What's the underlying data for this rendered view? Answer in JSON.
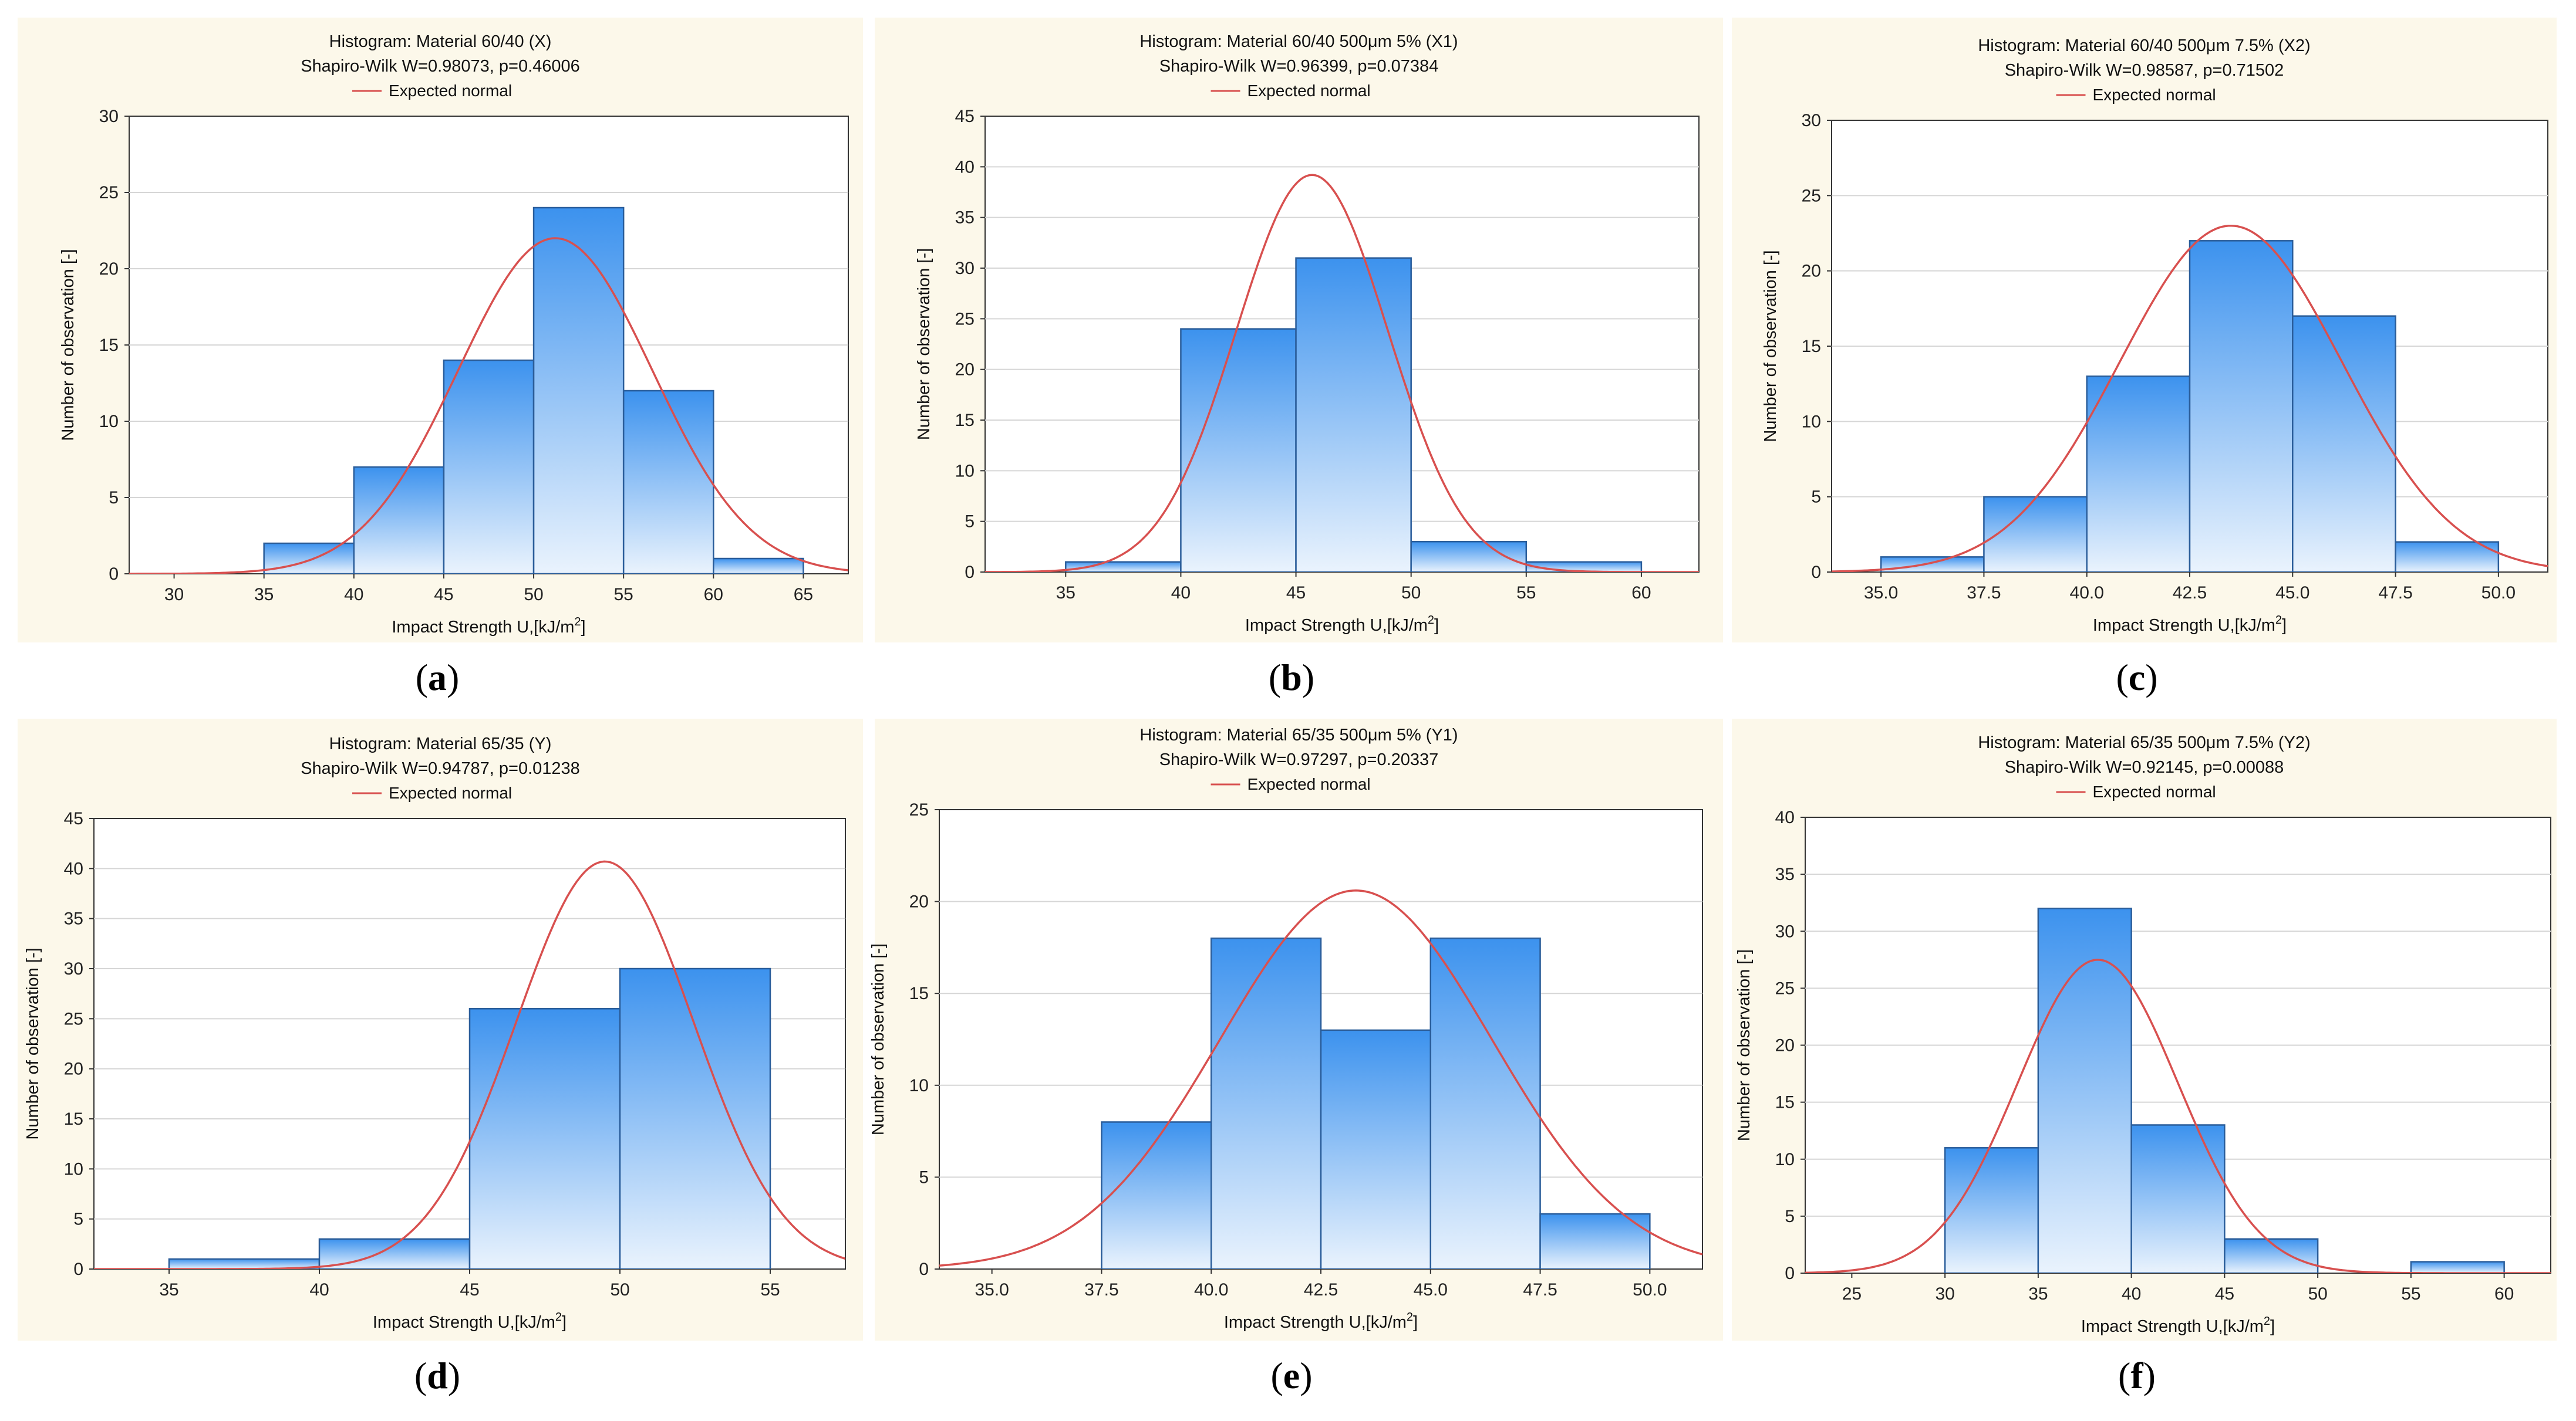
{
  "labels": {
    "expected_normal": "Expected normal",
    "xlabel": "Impact Strength U,[kJ/m",
    "xlabel_sup": "2",
    "xlabel_end": "]",
    "ylabel": "Number of observation [-]"
  },
  "colors": {
    "panel_bg": "#fcf8ea",
    "bar_top": "#3c92ee",
    "bar_bottom": "#eaf3fd",
    "bar_edge": "#2a5d9a",
    "curve": "#d8504f"
  },
  "chart_data": [
    {
      "type": "bar",
      "subfigure": "a",
      "title": "Histogram: Material 60/40 (X)",
      "subtitle": "Shapiro-Wilk W=0.98073, p=0.46006",
      "legend": "Expected normal",
      "xlabel": "Impact Strength U,[kJ/m2]",
      "ylabel": "Number of observation [-]",
      "xlim": [
        27.5,
        67.5
      ],
      "ylim": [
        0,
        30
      ],
      "xticks": [
        30,
        35,
        40,
        45,
        50,
        55,
        60,
        65
      ],
      "yticks": [
        0,
        5,
        10,
        15,
        20,
        25,
        30
      ],
      "tick_decimals": 0,
      "bins": [
        [
          35,
          40,
          2
        ],
        [
          40,
          45,
          7
        ],
        [
          45,
          50,
          14
        ],
        [
          50,
          55,
          24
        ],
        [
          55,
          60,
          12
        ],
        [
          60,
          65,
          1
        ]
      ],
      "normal_fit": {
        "mean": 51.2,
        "sd": 5.4,
        "peak": 22
      }
    },
    {
      "type": "bar",
      "subfigure": "b",
      "title": "Histogram: Material 60/40 500μm 5% (X1)",
      "subtitle": "Shapiro-Wilk W=0.96399, p=0.07384",
      "legend": "Expected normal",
      "xlabel": "Impact Strength U,[kJ/m2]",
      "ylabel": "Number of observation [-]",
      "xlim": [
        31.5,
        62.5
      ],
      "ylim": [
        0,
        45
      ],
      "xticks": [
        35,
        40,
        45,
        50,
        55,
        60
      ],
      "yticks": [
        0,
        5,
        10,
        15,
        20,
        25,
        30,
        35,
        40,
        45
      ],
      "tick_decimals": 0,
      "bins": [
        [
          35,
          40,
          1
        ],
        [
          40,
          45,
          24
        ],
        [
          45,
          50,
          31
        ],
        [
          50,
          55,
          3
        ],
        [
          55,
          60,
          1
        ]
      ],
      "normal_fit": {
        "mean": 45.7,
        "sd": 3.3,
        "peak": 39.2
      }
    },
    {
      "type": "bar",
      "subfigure": "c",
      "title": "Histogram: Material 60/40 500μm  7.5% (X2)",
      "subtitle": "Shapiro-Wilk W=0.98587, p=0.71502",
      "legend": "Expected normal",
      "xlabel": "Impact Strength U,[kJ/m2]",
      "ylabel": "Number of observation [-]",
      "xlim": [
        33.8,
        51.2
      ],
      "ylim": [
        0,
        30
      ],
      "xticks": [
        35.0,
        37.5,
        40.0,
        42.5,
        45.0,
        47.5,
        50.0
      ],
      "yticks": [
        0,
        5,
        10,
        15,
        20,
        25,
        30
      ],
      "tick_decimals": 1,
      "bins": [
        [
          35,
          37.5,
          1
        ],
        [
          37.5,
          40,
          5
        ],
        [
          40,
          42.5,
          13
        ],
        [
          42.5,
          45,
          22
        ],
        [
          45,
          47.5,
          17
        ],
        [
          47.5,
          50,
          2
        ]
      ],
      "normal_fit": {
        "mean": 43.5,
        "sd": 2.7,
        "peak": 23
      }
    },
    {
      "type": "bar",
      "subfigure": "d",
      "title": "Histogram: Material 65/35 (Y)",
      "subtitle": "Shapiro-Wilk W=0.94787, p=0.01238",
      "legend": "Expected normal",
      "xlabel": "Impact Strength U,[kJ/m2]",
      "ylabel": "Number of observation [-]",
      "xlim": [
        32.5,
        57.5
      ],
      "ylim": [
        0,
        45
      ],
      "xticks": [
        35,
        40,
        45,
        50,
        55
      ],
      "yticks": [
        0,
        5,
        10,
        15,
        20,
        25,
        30,
        35,
        40,
        45
      ],
      "tick_decimals": 0,
      "bins": [
        [
          35,
          40,
          1
        ],
        [
          40,
          45,
          3
        ],
        [
          45,
          50,
          26
        ],
        [
          50,
          55,
          30
        ]
      ],
      "normal_fit": {
        "mean": 49.5,
        "sd": 2.95,
        "peak": 40.7
      }
    },
    {
      "type": "bar",
      "subfigure": "e",
      "title": "Histogram: Material 65/35 500μm 5% (Y1)",
      "subtitle": "Shapiro-Wilk W=0.97297, p=0.20337",
      "legend": "Expected normal",
      "xlabel": "Impact Strength U,[kJ/m2]",
      "ylabel": "Number of observation [-]",
      "xlim": [
        33.8,
        51.2
      ],
      "ylim": [
        0,
        25
      ],
      "xticks": [
        35.0,
        37.5,
        40.0,
        42.5,
        45.0,
        47.5,
        50.0
      ],
      "yticks": [
        0,
        5,
        10,
        15,
        20,
        25
      ],
      "tick_decimals": 1,
      "bins": [
        [
          37.5,
          40,
          8
        ],
        [
          40,
          42.5,
          18
        ],
        [
          42.5,
          45,
          13
        ],
        [
          45,
          47.5,
          18
        ],
        [
          47.5,
          50,
          3
        ]
      ],
      "normal_fit": {
        "mean": 43.3,
        "sd": 3.1,
        "peak": 20.6
      }
    },
    {
      "type": "bar",
      "subfigure": "f",
      "title": "Histogram: Material 65/35 500μm 7.5% (Y2)",
      "subtitle": "Shapiro-Wilk W=0.92145, p=0.00088",
      "legend": "Expected normal",
      "xlabel": "Impact Strength U,[kJ/m2]",
      "ylabel": "Number of observation [-]",
      "xlim": [
        22.5,
        62.5
      ],
      "ylim": [
        0,
        40
      ],
      "xticks": [
        25,
        30,
        35,
        40,
        45,
        50,
        55,
        60
      ],
      "yticks": [
        0,
        5,
        10,
        15,
        20,
        25,
        30,
        35,
        40
      ],
      "tick_decimals": 0,
      "bins": [
        [
          30,
          35,
          11
        ],
        [
          35,
          40,
          32
        ],
        [
          40,
          45,
          13
        ],
        [
          45,
          50,
          3
        ],
        [
          55,
          60,
          1
        ]
      ],
      "normal_fit": {
        "mean": 38.2,
        "sd": 4.3,
        "peak": 27.5
      }
    }
  ]
}
